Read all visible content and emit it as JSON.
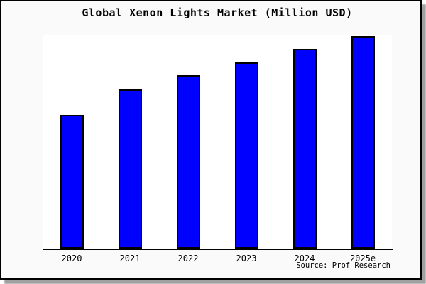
{
  "window": {
    "background_color": "#fafafa",
    "plot_background_color": "#ffffff",
    "border_color": "#000000",
    "shadow_color": "#a0a0a0"
  },
  "chart_data": {
    "type": "bar",
    "title": "Global Xenon Lights Market (Million USD)",
    "categories": [
      "2020",
      "2021",
      "2022",
      "2023",
      "2024",
      "2025e"
    ],
    "values": [
      188,
      224,
      244,
      262,
      281,
      299
    ],
    "xlabel": "",
    "ylabel": "",
    "ylim": [
      0,
      300
    ],
    "grid": false,
    "legend_position": "none",
    "y_axis_visible": false,
    "bar_color": "#0000ff",
    "bar_edge_color": "#000000",
    "source": "Source: Prof Research"
  }
}
